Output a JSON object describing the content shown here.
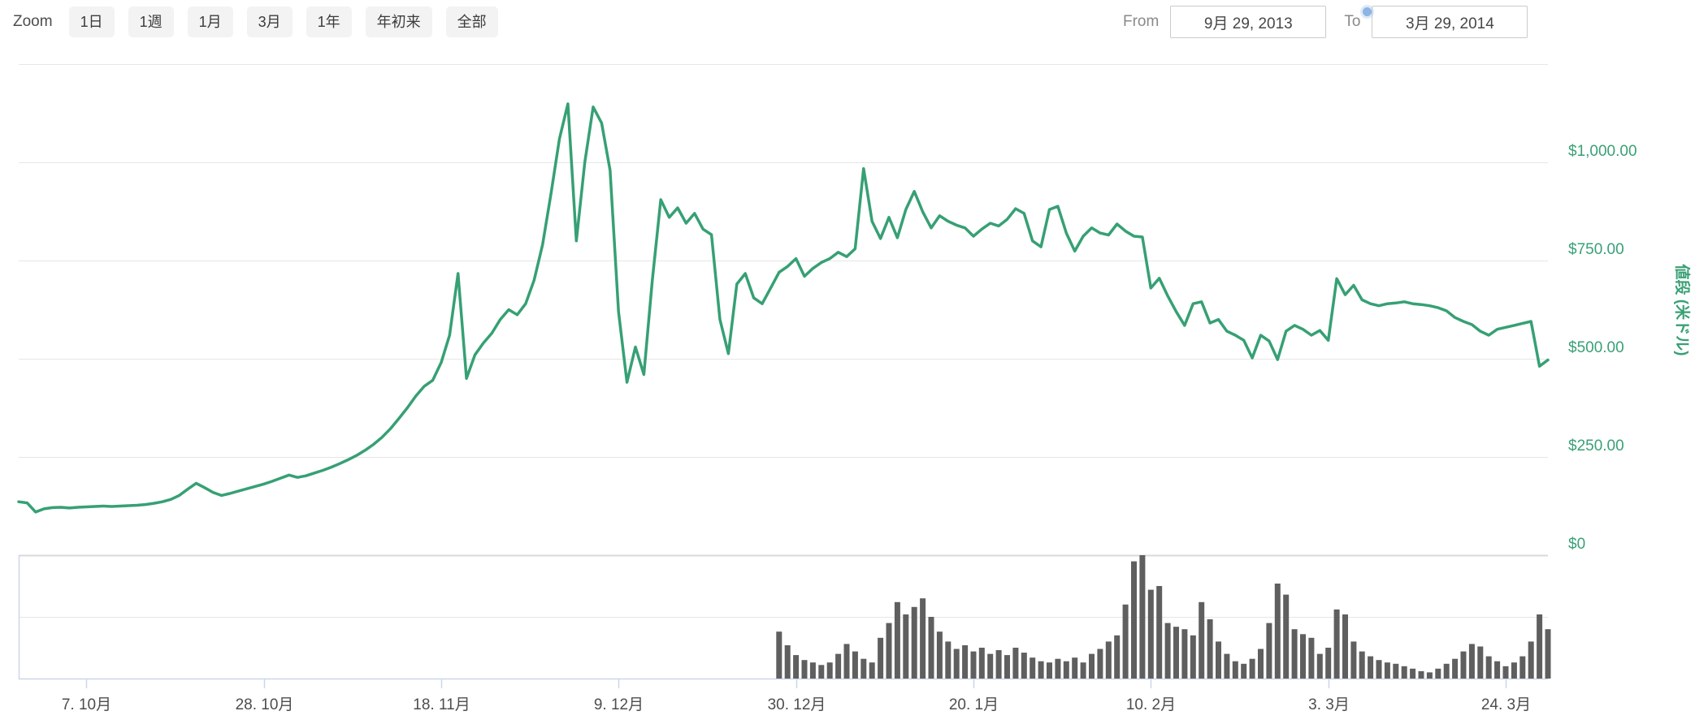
{
  "toolbar": {
    "zoom_label": "Zoom",
    "zoom_buttons": [
      {
        "label": "1日"
      },
      {
        "label": "1週"
      },
      {
        "label": "1月"
      },
      {
        "label": "3月"
      },
      {
        "label": "1年"
      },
      {
        "label": "年初来"
      },
      {
        "label": "全部"
      }
    ],
    "range": {
      "from_label": "From",
      "from_value": "9月 29, 2013",
      "to_label": "To",
      "to_value": "3月 29, 2014"
    }
  },
  "colors": {
    "price_line": "#36a074",
    "axis_label_green": "#3aa076",
    "gridline": "#e6e6e6",
    "zero_line": "#d9d9d9",
    "axis_line_blue": "#ccd6eb",
    "volume_bar": "#5f5f5f",
    "x_label_gray": "#4d4d4d"
  },
  "chart_data": [
    {
      "type": "line",
      "name": "price",
      "title": "",
      "ylabel": "値段 (米ドル)",
      "start_date": "2013-09-29",
      "end_date": "2014-03-29",
      "interval": "daily",
      "ylim": [
        0,
        1250
      ],
      "y_max_gridline_value": 1250,
      "y_ticks": [
        {
          "label": "$1,000.00",
          "value": 1000
        },
        {
          "label": "$750.00",
          "value": 750
        },
        {
          "label": "$500.00",
          "value": 500
        },
        {
          "label": "$250.00",
          "value": 250
        },
        {
          "label": "$0",
          "value": 0
        }
      ],
      "x_tick_labels": [
        "7. 10月",
        "28. 10月",
        "18. 11月",
        "9. 12月",
        "30. 12月",
        "20. 1月",
        "10. 2月",
        "3. 3月",
        "24. 3月"
      ],
      "x_tick_day_index": [
        8,
        29,
        50,
        71,
        92,
        113,
        134,
        155,
        176
      ],
      "grid": true,
      "legend": false,
      "values": [
        136,
        133,
        110,
        118,
        121,
        122,
        120,
        122,
        123,
        124,
        125,
        124,
        125,
        126,
        127,
        129,
        132,
        136,
        142,
        152,
        168,
        183,
        172,
        160,
        152,
        157,
        163,
        169,
        175,
        181,
        188,
        196,
        204,
        198,
        202,
        209,
        216,
        224,
        233,
        243,
        254,
        267,
        282,
        300,
        322,
        348,
        375,
        405,
        430,
        445,
        490,
        560,
        717,
        450,
        510,
        540,
        565,
        600,
        625,
        612,
        640,
        700,
        790,
        920,
        1060,
        1149,
        800,
        1000,
        1141,
        1100,
        980,
        620,
        440,
        530,
        460,
        700,
        905,
        860,
        884,
        845,
        870,
        830,
        816,
        600,
        513,
        690,
        717,
        655,
        640,
        680,
        720,
        735,
        755,
        710,
        730,
        745,
        755,
        771,
        760,
        780,
        984,
        850,
        806,
        860,
        808,
        880,
        926,
        874,
        833,
        864,
        850,
        840,
        833,
        812,
        830,
        845,
        838,
        855,
        882,
        870,
        800,
        785,
        880,
        888,
        820,
        774,
        812,
        833,
        820,
        815,
        843,
        825,
        812,
        810,
        680,
        705,
        660,
        620,
        585,
        640,
        645,
        591,
        600,
        570,
        560,
        547,
        502,
        560,
        545,
        498,
        570,
        585,
        575,
        560,
        572,
        547,
        704,
        663,
        687,
        650,
        640,
        635,
        640,
        642,
        645,
        640,
        638,
        635,
        630,
        622,
        605,
        595,
        587,
        570,
        560,
        575,
        580,
        585,
        590,
        595,
        481,
        497
      ]
    },
    {
      "type": "bar",
      "name": "volume",
      "axis_labels_visible": false,
      "scale": "relative (volume axis unlabeled)",
      "start_day_index": 90,
      "relative_values": [
        0.38,
        0.27,
        0.19,
        0.15,
        0.13,
        0.11,
        0.13,
        0.2,
        0.28,
        0.22,
        0.16,
        0.13,
        0.33,
        0.45,
        0.62,
        0.52,
        0.58,
        0.65,
        0.5,
        0.38,
        0.3,
        0.24,
        0.27,
        0.22,
        0.25,
        0.2,
        0.23,
        0.19,
        0.25,
        0.21,
        0.17,
        0.14,
        0.13,
        0.16,
        0.14,
        0.17,
        0.13,
        0.2,
        0.24,
        0.3,
        0.35,
        0.6,
        0.95,
        1.0,
        0.72,
        0.75,
        0.45,
        0.42,
        0.4,
        0.35,
        0.62,
        0.48,
        0.3,
        0.2,
        0.14,
        0.12,
        0.16,
        0.24,
        0.45,
        0.77,
        0.68,
        0.4,
        0.36,
        0.33,
        0.2,
        0.25,
        0.56,
        0.52,
        0.3,
        0.22,
        0.18,
        0.15,
        0.13,
        0.12,
        0.1,
        0.08,
        0.06,
        0.05,
        0.08,
        0.12,
        0.16,
        0.22,
        0.28,
        0.26,
        0.18,
        0.14,
        0.1,
        0.13,
        0.18,
        0.3,
        0.52,
        0.4
      ]
    }
  ]
}
